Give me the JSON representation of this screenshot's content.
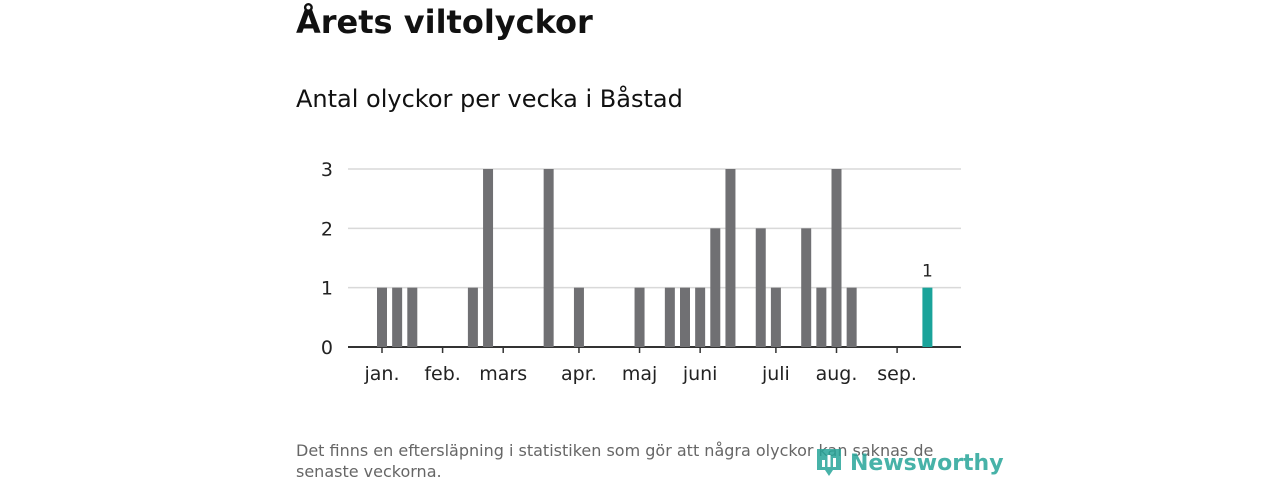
{
  "title": "Årets viltolyckor",
  "subtitle": "Antal olyckor per vecka i Båstad",
  "footnote": "Det finns en eftersläpning i statistiken som gör att några olyckor kan saknas de senaste veckorna.",
  "brand": {
    "name": "Newsworthy",
    "icon": "newsworthy-logo-icon",
    "color": "#27a599"
  },
  "chart_data": {
    "type": "bar",
    "x_unit": "week",
    "weeks": [
      2,
      3,
      4,
      5,
      6,
      7,
      8,
      9,
      10,
      11,
      12,
      13,
      14,
      15,
      16,
      17,
      18,
      19,
      20,
      21,
      22,
      23,
      24,
      25,
      26,
      27,
      28,
      29,
      30,
      31,
      32,
      33,
      34,
      35,
      36,
      37,
      38,
      39
    ],
    "values": [
      1,
      1,
      1,
      0,
      0,
      0,
      1,
      3,
      0,
      0,
      0,
      3,
      0,
      1,
      0,
      0,
      0,
      1,
      0,
      1,
      1,
      1,
      2,
      3,
      0,
      2,
      1,
      0,
      2,
      1,
      3,
      1,
      0,
      0,
      0,
      0,
      1,
      0
    ],
    "highlight_week": 38,
    "highlight_label": "1",
    "month_labels": [
      {
        "label": "jan.",
        "week": 2
      },
      {
        "label": "feb.",
        "week": 6
      },
      {
        "label": "mars",
        "week": 10
      },
      {
        "label": "apr.",
        "week": 15
      },
      {
        "label": "maj",
        "week": 19
      },
      {
        "label": "juni",
        "week": 23
      },
      {
        "label": "juli",
        "week": 28
      },
      {
        "label": "aug.",
        "week": 32
      },
      {
        "label": "sep.",
        "week": 36
      }
    ],
    "y_ticks": [
      0,
      1,
      2,
      3
    ],
    "ylim": [
      0,
      3
    ],
    "grid": true,
    "colors": {
      "bar": "#707073",
      "highlight": "#1aa39a",
      "grid": "#d9d9d9",
      "axis": "#333333"
    }
  }
}
